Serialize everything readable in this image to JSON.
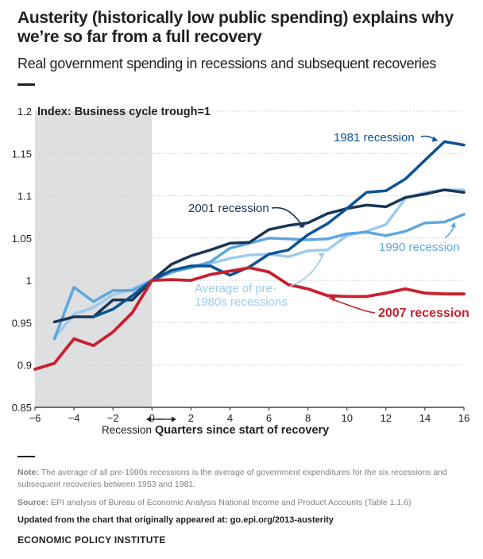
{
  "title": "Austerity (historically low public spending) explains why we’re so far from a full recovery",
  "subtitle": "Real government spending in recessions and subsequent recoveries",
  "notes": {
    "note_label": "Note:",
    "note_text": "The average of all pre-1980s recessions is the average of government expenditures for the six recessions and subsequent recoveries between 1953 and 1981.",
    "source_label": "Source:",
    "source_text": "EPI analysis of Bureau of Economic Analysis National Income and Product Accounts (Table 1.1.6)",
    "updated": "Updated from the chart that originally appeared at: go.epi.org/2013-austerity",
    "org": "ECONOMIC POLICY INSTITUTE"
  },
  "colors": {
    "r1981": "#0b5394",
    "r2001": "#1a3556",
    "r1990": "#5ea6dc",
    "pre1980": "#9ccbef",
    "r2007": "#c8202f",
    "recession_shade": "#dedfe0",
    "grid": "#c8c8c8"
  },
  "chart_data": {
    "type": "line",
    "ylabel": "Index: Business cycle trough=1",
    "xlabel": "Quarters since start of recovery",
    "recession_label": "Recession",
    "xlim": [
      -6,
      16
    ],
    "ylim": [
      0.85,
      1.2
    ],
    "xticks": [
      -6,
      -4,
      -2,
      0,
      2,
      4,
      6,
      8,
      10,
      12,
      14,
      16
    ],
    "xtick_labels": [
      "−6",
      "−4",
      "−2",
      "0",
      "2",
      "4",
      "6",
      "8",
      "10",
      "12",
      "14",
      "16"
    ],
    "yticks": [
      0.85,
      0.9,
      0.95,
      1.0,
      1.05,
      1.1,
      1.15,
      1.2
    ],
    "ytick_labels": [
      "0.85",
      "0.9",
      "0.95",
      "1",
      "1.05",
      "1.1",
      "1.15",
      "1.2"
    ],
    "recession_shade_x": [
      -6,
      0
    ],
    "grid": true,
    "series": [
      {
        "key": "pre1980",
        "name": "Average of pre-1980s recessions",
        "x": [
          -5,
          -4,
          -3,
          -2,
          -1,
          0,
          1,
          2,
          3,
          4,
          5,
          6,
          7,
          8,
          9,
          10,
          11,
          12,
          13,
          14,
          15,
          16
        ],
        "values": [
          0.932,
          0.96,
          0.968,
          0.983,
          0.99,
          1.0,
          1.009,
          1.017,
          1.02,
          1.026,
          1.03,
          1.031,
          1.028,
          1.035,
          1.036,
          1.053,
          1.058,
          1.066,
          1.097,
          1.104,
          1.107,
          1.107
        ]
      },
      {
        "key": "r1990",
        "name": "1990 recession",
        "x": [
          -5,
          -4,
          -3,
          -2,
          -1,
          0,
          1,
          2,
          3,
          4,
          5,
          6,
          7,
          8,
          9,
          10,
          11,
          12,
          13,
          14,
          15,
          16
        ],
        "values": [
          0.931,
          0.992,
          0.975,
          0.988,
          0.988,
          1.0,
          1.01,
          1.015,
          1.022,
          1.038,
          1.044,
          1.05,
          1.049,
          1.048,
          1.049,
          1.055,
          1.057,
          1.053,
          1.058,
          1.068,
          1.069,
          1.078
        ]
      },
      {
        "key": "r2001",
        "name": "2001 recession",
        "x": [
          -5,
          -4,
          -3,
          -2,
          -1,
          0,
          1,
          2,
          3,
          4,
          5,
          6,
          7,
          8,
          9,
          10,
          11,
          12,
          13,
          14,
          15,
          16
        ],
        "values": [
          0.951,
          0.957,
          0.957,
          0.977,
          0.977,
          1.0,
          1.019,
          1.029,
          1.036,
          1.044,
          1.045,
          1.06,
          1.065,
          1.068,
          1.079,
          1.085,
          1.089,
          1.087,
          1.098,
          1.102,
          1.107,
          1.104
        ]
      },
      {
        "key": "r1981",
        "name": "1981 recession",
        "x": [
          -3,
          -2,
          -1,
          0,
          1,
          2,
          3,
          4,
          5,
          6,
          7,
          8,
          9,
          10,
          11,
          12,
          13,
          14,
          15,
          16
        ],
        "values": [
          0.957,
          0.966,
          0.982,
          1.0,
          1.012,
          1.017,
          1.017,
          1.006,
          1.016,
          1.031,
          1.036,
          1.054,
          1.067,
          1.085,
          1.104,
          1.106,
          1.12,
          1.142,
          1.164,
          1.16
        ]
      },
      {
        "key": "r2007",
        "name": "2007 recession",
        "x": [
          -6,
          -5,
          -4,
          -3,
          -2,
          -1,
          0,
          1,
          2,
          3,
          4,
          5,
          6,
          7,
          8,
          9,
          10,
          11,
          12,
          13,
          14,
          15,
          16
        ],
        "values": [
          0.895,
          0.902,
          0.931,
          0.923,
          0.939,
          0.962,
          1.0,
          1.001,
          1.0,
          1.007,
          1.011,
          1.015,
          1.01,
          0.995,
          0.99,
          0.982,
          0.981,
          0.981,
          0.985,
          0.99,
          0.985,
          0.984,
          0.984
        ]
      }
    ]
  }
}
